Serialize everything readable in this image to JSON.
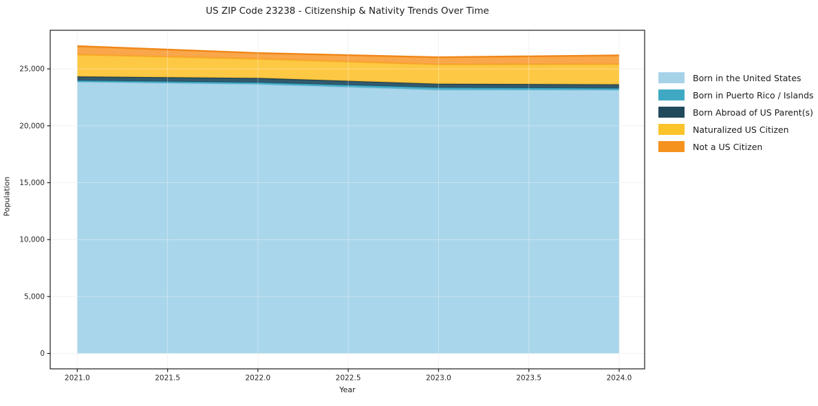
{
  "title": "US ZIP Code 23238 - Citizenship & Nativity Trends Over Time",
  "chart_data": {
    "type": "area",
    "stacked": true,
    "title": "US ZIP Code 23238 - Citizenship & Nativity Trends Over Time",
    "xlabel": "Year",
    "ylabel": "Population",
    "x": [
      2021,
      2022,
      2023,
      2024
    ],
    "series": [
      {
        "name": "Born in the United States",
        "swatch": "#A6D2E8",
        "fill": "#A3D2E9",
        "line": "#9ACBE3",
        "values": [
          23850,
          23650,
          23150,
          23140
        ]
      },
      {
        "name": "Born in Puerto Rico / Islands",
        "swatch": "#3FA9C4",
        "fill": "#46ACC6",
        "line": "#35A0BC",
        "values": [
          120,
          150,
          200,
          150
        ]
      },
      {
        "name": "Born Abroad of US Parent(s)",
        "swatch": "#21495C",
        "fill": "#224C60",
        "line": "#1A3D4E",
        "values": [
          360,
          400,
          340,
          350
        ]
      },
      {
        "name": "Naturalized US Citizen",
        "swatch": "#FDC32B",
        "fill": "#FDC334",
        "line": "#F6AC1E",
        "values": [
          1930,
          1690,
          1710,
          1790
        ]
      },
      {
        "name": "Not a US Citizen",
        "swatch": "#F5921E",
        "fill": "#F9A03B",
        "line": "#F08617",
        "values": [
          740,
          500,
          620,
          760
        ]
      }
    ],
    "x_tick_labels": [
      "2021.0",
      "2021.5",
      "2022.0",
      "2022.5",
      "2023.0",
      "2023.5",
      "2024.0"
    ],
    "x_tick_values": [
      2021,
      2021.5,
      2022,
      2022.5,
      2023,
      2023.5,
      2024
    ],
    "y_tick_labels": [
      "0",
      "5,000",
      "10,000",
      "15,000",
      "20,000",
      "25,000"
    ],
    "y_tick_values": [
      0,
      5000,
      10000,
      15000,
      20000,
      25000
    ],
    "xlim": [
      2020.85,
      2024.14
    ],
    "ylim": [
      0,
      28400
    ],
    "grid": true,
    "legend_position": "outside-right"
  }
}
